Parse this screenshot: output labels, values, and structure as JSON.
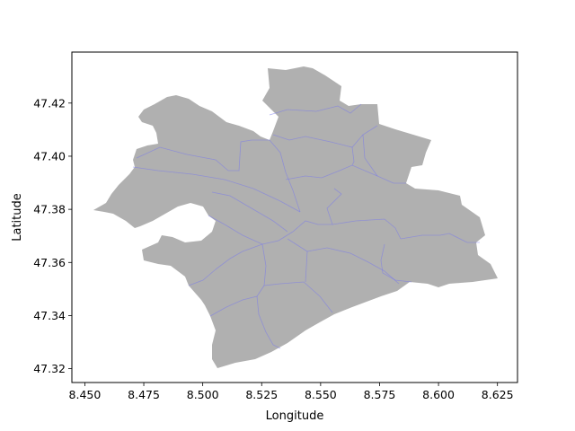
{
  "map": {
    "xlabel": "Longitude",
    "ylabel": "Latitude",
    "xlim": [
      8.4445,
      8.6335
    ],
    "ylim": [
      47.3148,
      47.4392
    ],
    "xticks": [
      "8.450",
      "8.475",
      "8.500",
      "8.525",
      "8.550",
      "8.575",
      "8.600",
      "8.625"
    ],
    "yticks": [
      "47.32",
      "47.34",
      "47.36",
      "47.38",
      "47.40",
      "47.42"
    ],
    "region_fill": "#b0b0b0",
    "boundary_color": "#7777ee",
    "frame_color": "#000000"
  }
}
